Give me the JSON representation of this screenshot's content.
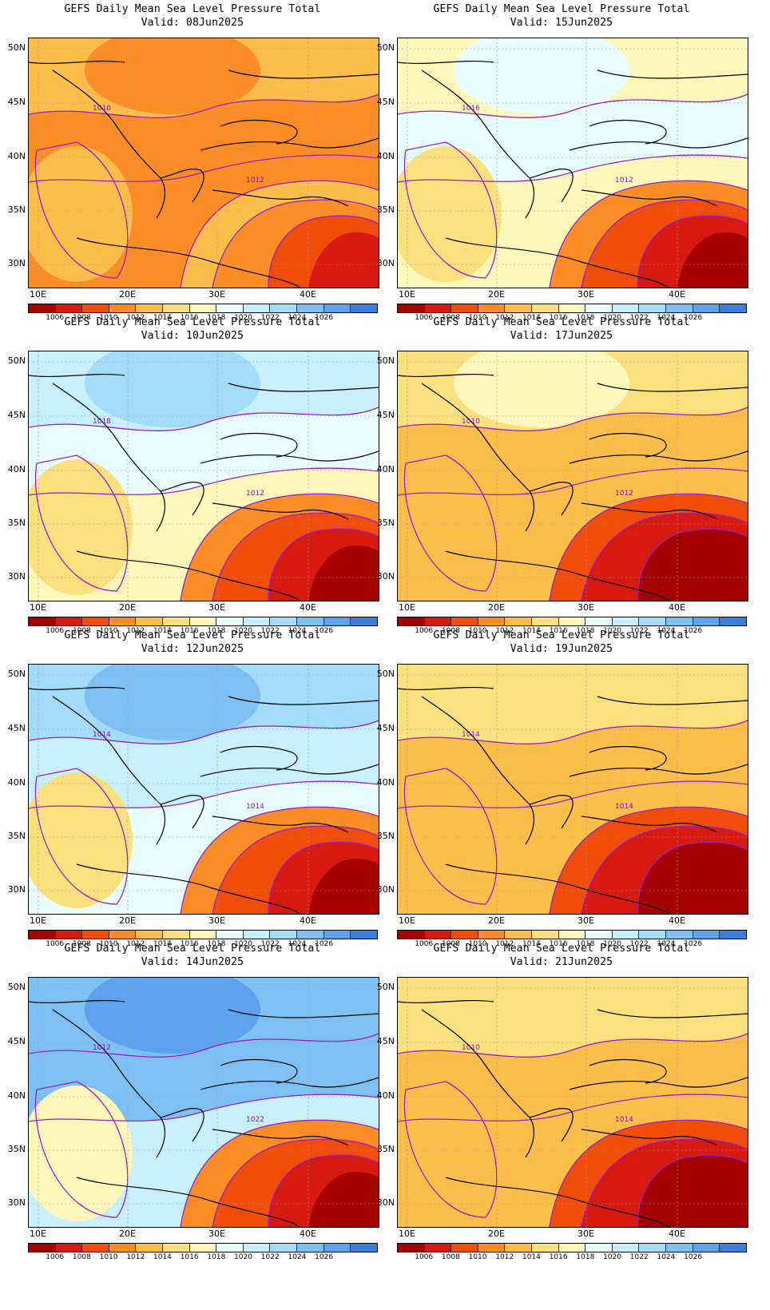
{
  "panels": [
    {
      "title": "GEFS Daily Mean Sea Level Pressure Total",
      "valid": "Valid: 08Jun2025",
      "base": [
        4,
        3,
        3,
        4,
        5
      ],
      "north_high": 3,
      "label": "1012",
      "label2": "1010"
    },
    {
      "title": "GEFS Daily Mean Sea Level Pressure Total",
      "valid": "Valid: 15Jun2025",
      "base": [
        6,
        7,
        6,
        5,
        4
      ],
      "north_high": 7,
      "label": "1012",
      "label2": "1016"
    },
    {
      "title": "GEFS Daily Mean Sea Level Pressure Total",
      "valid": "Valid: 10Jun2025",
      "base": [
        8,
        7,
        6,
        5,
        4
      ],
      "north_high": 9,
      "label": "1012",
      "label2": "1018"
    },
    {
      "title": "GEFS Daily Mean Sea Level Pressure Total",
      "valid": "Valid: 17Jun2025",
      "base": [
        5,
        4,
        4,
        4,
        3
      ],
      "north_high": 6,
      "label": "1012",
      "label2": "1010"
    },
    {
      "title": "GEFS Daily Mean Sea Level Pressure Total",
      "valid": "Valid: 12Jun2025",
      "base": [
        9,
        8,
        7,
        5,
        4
      ],
      "north_high": 10,
      "label": "1014",
      "label2": "1014"
    },
    {
      "title": "GEFS Daily Mean Sea Level Pressure Total",
      "valid": "Valid: 19Jun2025",
      "base": [
        5,
        4,
        4,
        4,
        3
      ],
      "north_high": 5,
      "label": "1014",
      "label2": "1014"
    },
    {
      "title": "GEFS Daily Mean Sea Level Pressure Total",
      "valid": "Valid: 14Jun2025",
      "base": [
        10,
        10,
        8,
        6,
        4
      ],
      "north_high": 11,
      "label": "1022",
      "label2": "1012"
    },
    {
      "title": "GEFS Daily Mean Sea Level Pressure Total",
      "valid": "Valid: 21Jun2025",
      "base": [
        5,
        4,
        4,
        4,
        3
      ],
      "north_high": 5,
      "label": "1014",
      "label2": "1010"
    }
  ],
  "lat_labels": [
    "50N",
    "45N",
    "40N",
    "35N",
    "30N"
  ],
  "lon_labels": [
    "10E",
    "20E",
    "30E",
    "40E"
  ],
  "colorbar": {
    "colors": [
      "#a50000",
      "#d7190f",
      "#f24d08",
      "#fc8c26",
      "#fdbd4b",
      "#fbe07e",
      "#fef7b9",
      "#e8fdfe",
      "#c7f0fc",
      "#a2dcf8",
      "#7fc0f3",
      "#5ca3ee",
      "#3b7fdd"
    ],
    "labels": [
      "1006",
      "1008",
      "1010",
      "1012",
      "1014",
      "1016",
      "1018",
      "1020",
      "1022",
      "1024",
      "1026"
    ]
  }
}
